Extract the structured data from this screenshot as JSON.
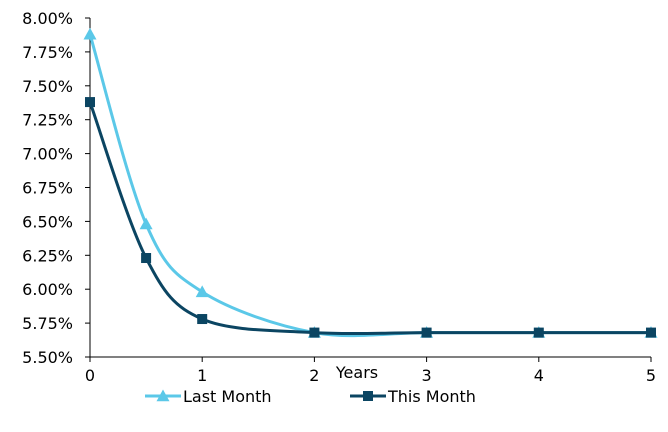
{
  "chart_data": {
    "type": "line",
    "title": "",
    "xlabel": "Years",
    "ylabel": "",
    "xlim": [
      0,
      5
    ],
    "ylim": [
      5.5,
      8.0
    ],
    "x_ticks": [
      "0",
      "1",
      "2",
      "3",
      "4",
      "5"
    ],
    "y_ticks": [
      "5.50%",
      "5.75%",
      "6.00%",
      "6.25%",
      "6.50%",
      "6.75%",
      "7.00%",
      "7.25%",
      "7.50%",
      "7.75%",
      "8.00%"
    ],
    "grid": false,
    "legend_position": "bottom",
    "series": [
      {
        "name": "Last Month",
        "marker": "triangle",
        "color": "#5bc8e8",
        "x": [
          0,
          0.5,
          1,
          2,
          3,
          4,
          5
        ],
        "y": [
          7.88,
          6.48,
          5.98,
          5.68,
          5.68,
          5.68,
          5.68
        ]
      },
      {
        "name": "This Month",
        "marker": "square",
        "color": "#0b4562",
        "x": [
          0,
          0.5,
          1,
          2,
          3,
          4,
          5
        ],
        "y": [
          7.38,
          6.23,
          5.78,
          5.68,
          5.68,
          5.68,
          5.68
        ]
      }
    ]
  }
}
